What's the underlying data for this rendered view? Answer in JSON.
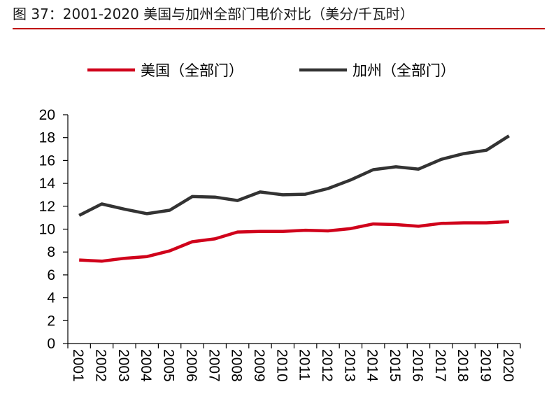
{
  "title": "图 37：2001-2020 美国与加州全部门电价对比（美分/千瓦时）",
  "colors": {
    "title_rule": "#c00000",
    "series_us": "#d0021b",
    "series_ca": "#333333"
  },
  "chart_data": {
    "type": "line",
    "title": "",
    "xlabel": "",
    "ylabel": "",
    "x": [
      "2001",
      "2002",
      "2003",
      "2004",
      "2005",
      "2006",
      "2007",
      "2008",
      "2009",
      "2010",
      "2011",
      "2012",
      "2013",
      "2014",
      "2015",
      "2016",
      "2017",
      "2018",
      "2019",
      "2020"
    ],
    "ylim": [
      0,
      20
    ],
    "yticks": [
      0,
      2,
      4,
      6,
      8,
      10,
      12,
      14,
      16,
      18,
      20
    ],
    "grid": false,
    "legend": "top",
    "series": [
      {
        "name": "美国（全部门）",
        "color": "#d0021b",
        "values": [
          7.3,
          7.2,
          7.45,
          7.6,
          8.1,
          8.9,
          9.15,
          9.75,
          9.8,
          9.8,
          9.9,
          9.85,
          10.05,
          10.45,
          10.4,
          10.25,
          10.5,
          10.55,
          10.55,
          10.65
        ]
      },
      {
        "name": "加州（全部门）",
        "color": "#333333",
        "values": [
          11.2,
          12.2,
          11.75,
          11.35,
          11.65,
          12.85,
          12.8,
          12.5,
          13.25,
          13.0,
          13.05,
          13.55,
          14.3,
          15.2,
          15.45,
          15.25,
          16.1,
          16.6,
          16.9,
          18.15
        ]
      }
    ]
  }
}
